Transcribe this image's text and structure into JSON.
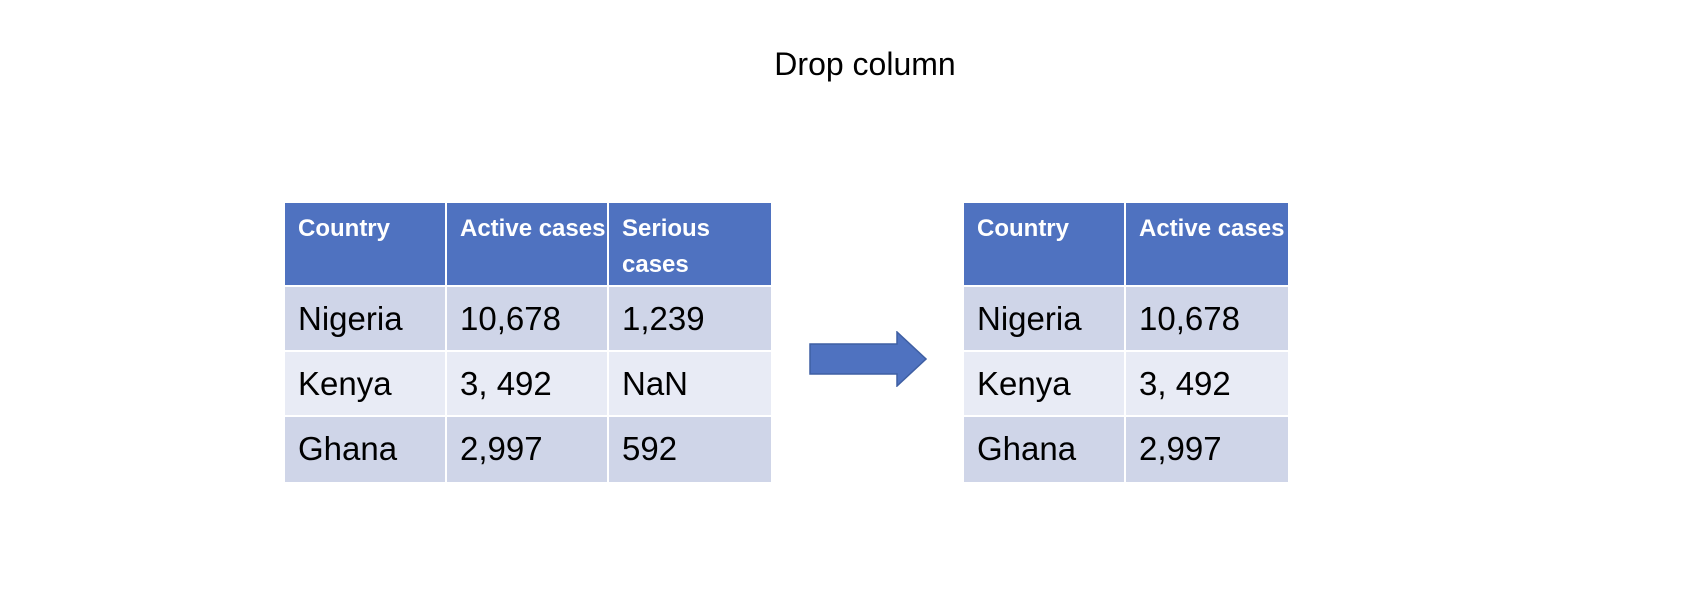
{
  "title": "Drop column",
  "before": {
    "headers": [
      "Country",
      "Active cases",
      "Serious cases"
    ],
    "rows": [
      [
        "Nigeria",
        "10,678",
        "1,239"
      ],
      [
        "Kenya",
        "3, 492",
        "NaN"
      ],
      [
        "Ghana",
        "2,997",
        "592"
      ]
    ]
  },
  "after": {
    "headers": [
      "Country",
      "Active cases"
    ],
    "rows": [
      [
        "Nigeria",
        "10,678"
      ],
      [
        "Kenya",
        "3, 492"
      ],
      [
        "Ghana",
        "2,997"
      ]
    ]
  },
  "colors": {
    "header": "#4f72c0",
    "row_dark": "#cfd5e8",
    "row_light": "#e8ebf5",
    "arrow": "#4f72c0"
  },
  "icons": {
    "arrow": "right-arrow-icon"
  }
}
